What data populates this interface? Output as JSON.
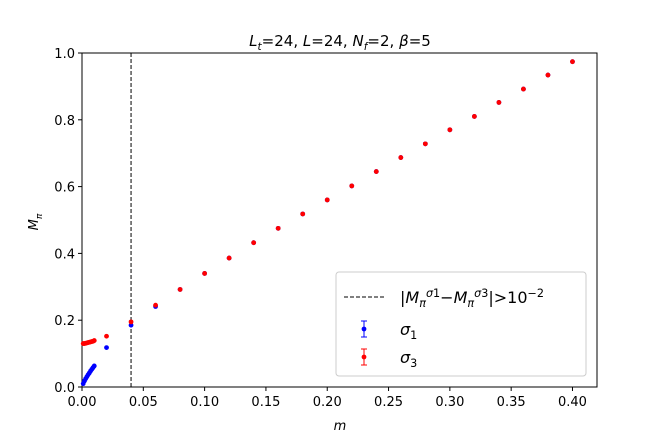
{
  "chart_data": {
    "type": "scatter",
    "title": "L_t=24, L=24, N_f=2, β=5",
    "x_label": "m",
    "y_label": "M_π",
    "x": [
      0.001,
      0.002,
      0.003,
      0.004,
      0.005,
      0.006,
      0.007,
      0.008,
      0.009,
      0.01,
      0.02,
      0.04,
      0.06,
      0.08,
      0.1,
      0.12,
      0.14,
      0.16,
      0.18,
      0.2,
      0.22,
      0.24,
      0.26,
      0.28,
      0.3,
      0.32,
      0.34,
      0.36,
      0.38,
      0.4
    ],
    "series": [
      {
        "name": "σ_1",
        "color": "#0000ff",
        "values": [
          0.01,
          0.018,
          0.025,
          0.031,
          0.037,
          0.042,
          0.048,
          0.053,
          0.058,
          0.063,
          0.118,
          0.185,
          0.241,
          0.292,
          0.34,
          0.386,
          0.432,
          0.475,
          0.518,
          0.56,
          0.602,
          0.645,
          0.687,
          0.728,
          0.77,
          0.81,
          0.852,
          0.892,
          0.934,
          0.974
        ]
      },
      {
        "name": "σ_3",
        "color": "#ff0000",
        "values": [
          0.13,
          0.13,
          0.131,
          0.132,
          0.133,
          0.134,
          0.135,
          0.136,
          0.137,
          0.139,
          0.152,
          0.195,
          0.245,
          0.292,
          0.34,
          0.386,
          0.432,
          0.475,
          0.518,
          0.56,
          0.602,
          0.645,
          0.687,
          0.728,
          0.77,
          0.81,
          0.852,
          0.892,
          0.934,
          0.974
        ]
      }
    ],
    "vline": {
      "x": 0.04,
      "name": "|M_π^{σ1}−M_π^{σ3}|>10^{−2}",
      "color": "#000000"
    },
    "xlim": [
      0,
      0.42
    ],
    "ylim": [
      0,
      1.0
    ],
    "xticks": [
      {
        "value": 0,
        "label": "0.00"
      },
      0.05,
      {
        "value": 0.1,
        "label": "0.10"
      },
      0.15,
      {
        "value": 0.2,
        "label": "0.20"
      },
      0.25,
      {
        "value": 0.3,
        "label": "0.30"
      },
      0.35,
      {
        "value": 0.4,
        "label": "0.40"
      }
    ],
    "yticks": [
      {
        "value": 0,
        "label": "0.0"
      },
      0.2,
      0.4,
      0.6,
      0.8,
      {
        "value": 1,
        "label": "1.0"
      }
    ],
    "legend": "lower right"
  }
}
